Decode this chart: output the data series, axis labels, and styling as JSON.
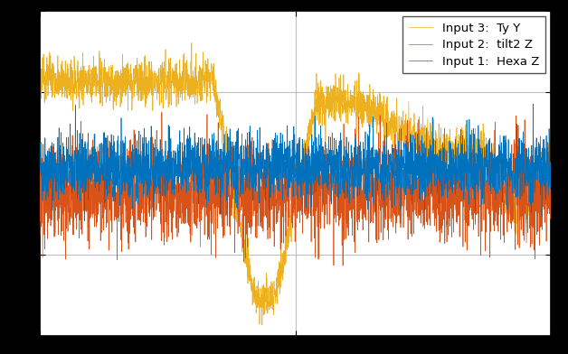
{
  "title": "",
  "xlabel": "",
  "ylabel": "",
  "legend_labels": [
    "Input 1:  Hexa Z",
    "Input 2:  tilt2 Z",
    "Input 3:  Ty Y"
  ],
  "colors": [
    "#0072BD",
    "#D95319",
    "#EDB120"
  ],
  "background_color": "#ffffff",
  "fig_background": "#000000",
  "grid_color": "#b0b0b0",
  "figsize": [
    6.28,
    3.92
  ],
  "dpi": 100,
  "linewidth": 0.5,
  "seed": 42,
  "n_points": 3000,
  "ylim": [
    -1.5,
    1.5
  ],
  "xlim": [
    0,
    3000
  ]
}
